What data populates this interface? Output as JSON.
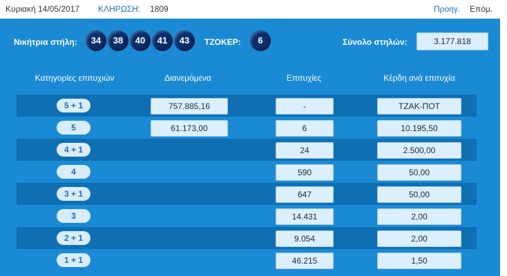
{
  "header": {
    "date": "Κυριακή 14/05/2017",
    "draw_label": "ΚΛΗΡΩΣΗ:",
    "draw_number": "1809",
    "prev": "Προηγ.",
    "next": "Επόμ."
  },
  "winning": {
    "label": "Νικήτρια στήλη:",
    "numbers": [
      "34",
      "38",
      "40",
      "41",
      "43"
    ],
    "joker_label": "ΤΖΟΚΕΡ:",
    "joker": "6",
    "total_label": "Σύνολο στηλών:",
    "total_value": "3.177.818"
  },
  "columns": {
    "category": "Κατηγορίες επιτυχιών",
    "distributed": "Διανεμόμενα",
    "winners": "Επιτυχίες",
    "prize": "Κέρδη ανά επιτυχία"
  },
  "rows": [
    {
      "category": "5 + 1",
      "distributed": "757.885,16",
      "winners": "-",
      "prize": "ΤΖΑΚ-ΠΟΤ"
    },
    {
      "category": "5",
      "distributed": "61.173,00",
      "winners": "6",
      "prize": "10.195,50"
    },
    {
      "category": "4 + 1",
      "distributed": "",
      "winners": "24",
      "prize": "2.500,00"
    },
    {
      "category": "4",
      "distributed": "",
      "winners": "590",
      "prize": "50,00"
    },
    {
      "category": "3 + 1",
      "distributed": "",
      "winners": "647",
      "prize": "50,00"
    },
    {
      "category": "3",
      "distributed": "",
      "winners": "14.431",
      "prize": "2,00"
    },
    {
      "category": "2 + 1",
      "distributed": "",
      "winners": "9.054",
      "prize": "2,00"
    },
    {
      "category": "1 + 1",
      "distributed": "",
      "winners": "46.215",
      "prize": "1,50"
    }
  ]
}
